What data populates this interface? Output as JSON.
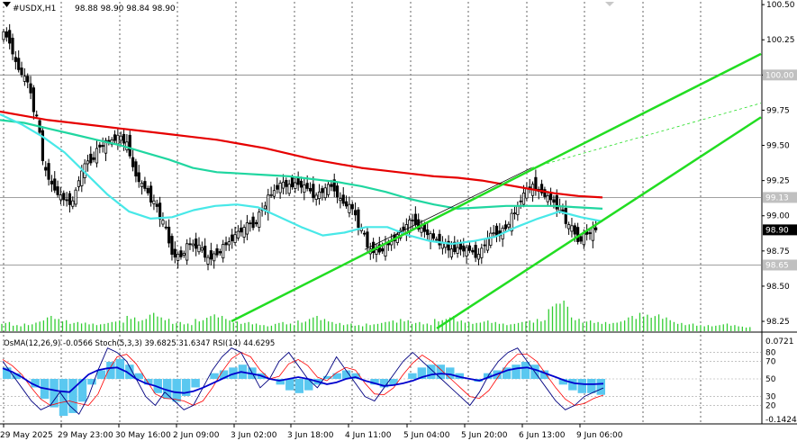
{
  "chart_data": [
    {
      "type": "candlestick",
      "title": "#USDX,H1",
      "ohlc_label": "98.88 98.90 98.84 98.90",
      "ylim": [
        98.18,
        100.52
      ],
      "yticks": [
        "100.50",
        "100.25",
        "100.00",
        "99.75",
        "99.50",
        "99.25",
        "99.00",
        "98.75",
        "98.50",
        "98.25"
      ],
      "ytick_values": [
        100.5,
        100.25,
        100.0,
        99.75,
        99.5,
        99.25,
        99.0,
        98.75,
        98.5,
        98.25
      ],
      "price_labels": [
        {
          "text": "100.00",
          "value": 100.0,
          "bg": "#c0c0c0",
          "fg": "#ffffff"
        },
        {
          "text": "99.13",
          "value": 99.13,
          "bg": "#c0c0c0",
          "fg": "#ffffff"
        },
        {
          "text": "98.90",
          "value": 98.9,
          "bg": "#000000",
          "fg": "#ffffff"
        },
        {
          "text": "98.65",
          "value": 98.65,
          "bg": "#c0c0c0",
          "fg": "#ffffff"
        }
      ],
      "closes": [
        100.25,
        100.05,
        99.95,
        99.7,
        99.3,
        99.2,
        99.12,
        99.1,
        99.3,
        99.4,
        99.5,
        99.52,
        99.56,
        99.5,
        99.3,
        99.2,
        99.1,
        98.95,
        98.75,
        98.72,
        98.8,
        98.78,
        98.68,
        98.74,
        98.8,
        98.86,
        98.9,
        98.94,
        99.05,
        99.15,
        99.22,
        99.2,
        99.24,
        99.2,
        99.14,
        99.18,
        99.2,
        99.1,
        99.05,
        98.9,
        98.74,
        98.76,
        98.8,
        98.86,
        98.92,
        98.96,
        98.9,
        98.84,
        98.8,
        98.74,
        98.78,
        98.76,
        98.72,
        98.82,
        98.88,
        98.92,
        99.02,
        99.15,
        99.2,
        99.18,
        99.12,
        99.06,
        98.92,
        98.84,
        98.88,
        98.9
      ],
      "volumes": [
        0.3,
        0.2,
        0.25,
        0.35,
        0.5,
        0.4,
        0.3,
        0.28,
        0.25,
        0.3,
        0.35,
        0.5,
        0.4,
        0.6,
        0.45,
        0.3,
        0.25,
        0.4,
        0.55,
        0.5,
        0.35,
        0.3,
        0.25,
        0.2,
        0.3,
        0.25,
        0.35,
        0.5,
        0.4,
        0.3,
        0.25,
        0.2,
        0.25,
        0.3,
        0.35,
        0.4,
        0.3,
        0.25,
        0.4,
        0.5,
        0.35,
        0.3,
        0.35,
        0.3,
        0.25,
        0.3,
        0.35,
        0.4,
        0.9,
        1.0,
        0.45,
        0.35,
        0.3,
        0.3,
        0.35,
        0.5,
        0.6,
        0.55,
        0.45,
        0.3,
        0.25,
        0.2,
        0.2,
        0.25,
        0.2,
        0.15
      ],
      "ma_red": [
        99.74,
        99.71,
        99.68,
        99.66,
        99.64,
        99.62,
        99.6,
        99.58,
        99.56,
        99.54,
        99.51,
        99.48,
        99.44,
        99.4,
        99.37,
        99.34,
        99.32,
        99.3,
        99.28,
        99.27,
        99.25,
        99.22,
        99.19,
        99.16,
        99.14,
        99.13
      ],
      "ma_teal": [
        99.68,
        99.66,
        99.62,
        99.58,
        99.54,
        99.5,
        99.45,
        99.4,
        99.34,
        99.31,
        99.3,
        99.29,
        99.28,
        99.26,
        99.24,
        99.21,
        99.17,
        99.12,
        99.08,
        99.05,
        99.06,
        99.07,
        99.07,
        99.07,
        99.06,
        99.05
      ],
      "ma_cyan": [
        99.72,
        99.65,
        99.56,
        99.45,
        99.3,
        99.15,
        99.03,
        98.98,
        98.99,
        99.04,
        99.07,
        99.08,
        99.06,
        98.99,
        98.92,
        98.86,
        98.88,
        98.92,
        98.92,
        98.86,
        98.82,
        98.8,
        98.82,
        98.85,
        98.92,
        98.98,
        99.03,
        98.99,
        98.96
      ],
      "trend_lines": [
        {
          "style": "solid",
          "color": "#22dd22",
          "from": [
            "2 Jun 09:00",
            98.25
          ],
          "to": [
            "end",
            100.15
          ]
        },
        {
          "style": "solid",
          "color": "#22dd22",
          "from": [
            "5 Jun 04:00",
            98.2
          ],
          "to": [
            "end",
            99.7
          ]
        },
        {
          "style": "solid",
          "color": "#22dd22",
          "from": [
            "4 Jun 11:00",
            98.76
          ],
          "to": [
            "6 Jun 13:00",
            99.34
          ]
        },
        {
          "style": "dashed",
          "color": "#22dd22",
          "from": [
            "6 Jun 13:00",
            99.34
          ],
          "to": [
            "end",
            99.8
          ]
        }
      ]
    },
    {
      "type": "oscillator",
      "label": "OsMA(12,26,9) -0.0566  Stoch(5,3,3) 39.6825 31.6347  RSI(14) 44.6295",
      "osma_labels": [
        "0.0721",
        "-0.1424"
      ],
      "osma_range": [
        -0.1424,
        0.0721
      ],
      "osma": [
        0.04,
        0.02,
        0.0,
        -0.03,
        -0.07,
        -0.1,
        -0.13,
        -0.12,
        -0.08,
        -0.02,
        0.03,
        0.06,
        0.07,
        0.05,
        0.02,
        -0.02,
        -0.05,
        -0.07,
        -0.08,
        -0.06,
        -0.03,
        0.0,
        0.02,
        0.03,
        0.04,
        0.05,
        0.04,
        0.02,
        0.0,
        -0.02,
        -0.04,
        -0.05,
        -0.04,
        -0.02,
        0.01,
        0.02,
        0.03,
        0.02,
        0.0,
        -0.02,
        -0.03,
        -0.02,
        0.0,
        0.02,
        0.04,
        0.05,
        0.05,
        0.04,
        0.02,
        0.0,
        -0.01,
        0.02,
        0.03,
        0.04,
        0.05,
        0.06,
        0.05,
        0.03,
        0.0,
        -0.02,
        -0.04,
        -0.05,
        -0.05,
        -0.056
      ],
      "level_labels": [
        "80",
        "70",
        "50",
        "30",
        "20"
      ],
      "level_values": [
        80,
        70,
        50,
        30,
        20
      ],
      "stoch_main": [
        70,
        55,
        40,
        25,
        15,
        20,
        35,
        20,
        10,
        30,
        60,
        85,
        80,
        70,
        50,
        30,
        20,
        35,
        25,
        15,
        20,
        40,
        60,
        75,
        85,
        80,
        60,
        40,
        50,
        70,
        80,
        65,
        50,
        40,
        55,
        75,
        60,
        45,
        30,
        25,
        40,
        55,
        70,
        80,
        70,
        60,
        50,
        40,
        30,
        20,
        35,
        55,
        70,
        80,
        85,
        70,
        55,
        40,
        25,
        15,
        20,
        30,
        35,
        39.68
      ],
      "stoch_signal": [
        72,
        65,
        55,
        40,
        27,
        20,
        23,
        25,
        22,
        20,
        33,
        58,
        75,
        78,
        67,
        50,
        33,
        28,
        27,
        25,
        20,
        25,
        40,
        58,
        73,
        80,
        75,
        60,
        50,
        53,
        67,
        72,
        65,
        52,
        48,
        57,
        63,
        60,
        45,
        33,
        32,
        40,
        55,
        68,
        77,
        70,
        60,
        50,
        40,
        30,
        28,
        37,
        53,
        68,
        78,
        78,
        70,
        55,
        40,
        27,
        20,
        22,
        28,
        31.63
      ],
      "rsi": [
        62,
        58,
        52,
        45,
        40,
        38,
        36,
        35,
        45,
        55,
        60,
        62,
        63,
        58,
        50,
        45,
        42,
        38,
        35,
        34,
        36,
        40,
        45,
        50,
        55,
        58,
        56,
        54,
        50,
        48,
        50,
        52,
        50,
        47,
        44,
        46,
        50,
        52,
        48,
        45,
        42,
        43,
        45,
        48,
        52,
        55,
        56,
        55,
        52,
        50,
        48,
        52,
        56,
        60,
        62,
        63,
        60,
        56,
        52,
        48,
        45,
        44,
        44,
        44.63
      ]
    }
  ],
  "x_labels": [
    "29 May 2025",
    "29 May 23:00",
    "30 May 16:00",
    "2 Jun 09:00",
    "3 Jun 02:00",
    "3 Jun 18:00",
    "4 Jun 11:00",
    "5 Jun 04:00",
    "5 Jun 20:00",
    "6 Jun 13:00",
    "9 Jun 06:00"
  ],
  "colors": {
    "bull": "#000000",
    "bear": "#000000",
    "volume": "#32cd32",
    "ma_red": "#e60000",
    "ma_teal": "#20d6a0",
    "ma_cyan": "#48e8e8",
    "osma": "#5ac8f0",
    "stoch_main": "#000080",
    "stoch_signal": "#ff0000",
    "rsi": "#0000cd",
    "grid": "#000000",
    "hline": "#808080"
  }
}
